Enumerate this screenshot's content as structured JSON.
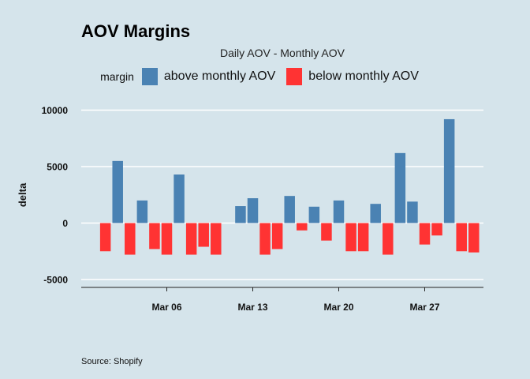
{
  "chart_data": {
    "type": "bar",
    "title": "AOV Margins",
    "subtitle": "Daily AOV - Monthly AOV",
    "ylabel": "delta",
    "xlabel": "",
    "caption": "Source: Shopify",
    "legend": {
      "title": "margin",
      "placement": "top",
      "entries": [
        {
          "label": "above monthly AOV",
          "color": "#4a82b3"
        },
        {
          "label": "below monthly AOV",
          "color": "#ff3333"
        }
      ]
    },
    "ylim": [
      -5800,
      10000
    ],
    "y_ticks": [
      -5000,
      0,
      5000,
      10000
    ],
    "y_tick_labels": [
      "-5000",
      "0",
      "5000",
      "10000"
    ],
    "x_ticks": [
      {
        "date": "Mar 06",
        "label": "Mar 06"
      },
      {
        "date": "Mar 13",
        "label": "Mar 13"
      },
      {
        "date": "Mar 20",
        "label": "Mar 20"
      },
      {
        "date": "Mar 27",
        "label": "Mar 27"
      }
    ],
    "grid": true,
    "bars": [
      {
        "date": "Mar 01",
        "value": -2500
      },
      {
        "date": "Mar 02",
        "value": 5500
      },
      {
        "date": "Mar 03",
        "value": -2800
      },
      {
        "date": "Mar 04",
        "value": 2000
      },
      {
        "date": "Mar 05",
        "value": -2300
      },
      {
        "date": "Mar 06",
        "value": -2800
      },
      {
        "date": "Mar 07",
        "value": 4300
      },
      {
        "date": "Mar 08",
        "value": -2800
      },
      {
        "date": "Mar 09",
        "value": -2100
      },
      {
        "date": "Mar 10",
        "value": -2800
      },
      {
        "date": "Mar 12",
        "value": 1500
      },
      {
        "date": "Mar 13",
        "value": 2200
      },
      {
        "date": "Mar 14",
        "value": -2800
      },
      {
        "date": "Mar 15",
        "value": -2300
      },
      {
        "date": "Mar 16",
        "value": 2400
      },
      {
        "date": "Mar 17",
        "value": -650
      },
      {
        "date": "Mar 18",
        "value": 1450
      },
      {
        "date": "Mar 19",
        "value": -1550
      },
      {
        "date": "Mar 20",
        "value": 2000
      },
      {
        "date": "Mar 21",
        "value": -2500
      },
      {
        "date": "Mar 22",
        "value": -2500
      },
      {
        "date": "Mar 23",
        "value": 1700
      },
      {
        "date": "Mar 24",
        "value": -2800
      },
      {
        "date": "Mar 25",
        "value": 6200
      },
      {
        "date": "Mar 26",
        "value": 1900
      },
      {
        "date": "Mar 27",
        "value": -1900
      },
      {
        "date": "Mar 28",
        "value": -1100
      },
      {
        "date": "Mar 29",
        "value": 9200
      },
      {
        "date": "Mar 30",
        "value": -2500
      },
      {
        "date": "Mar 31",
        "value": -2600
      }
    ]
  }
}
